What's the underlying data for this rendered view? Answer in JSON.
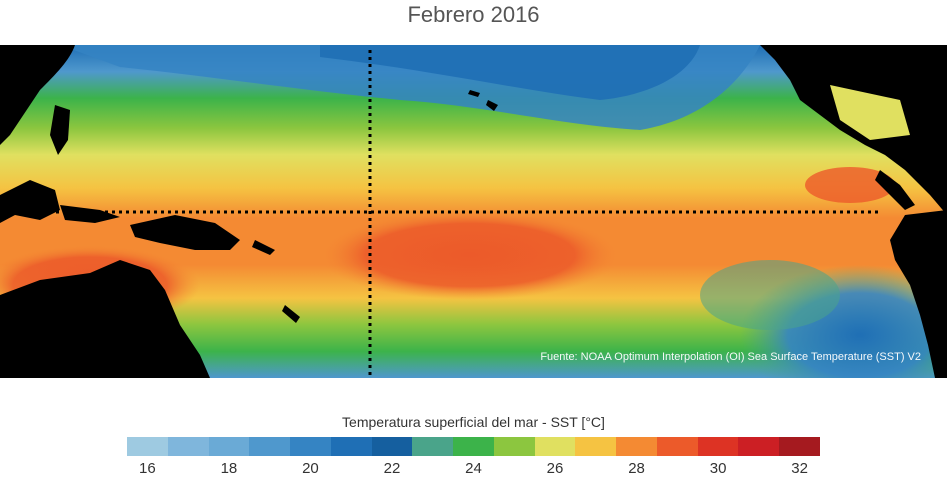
{
  "title": "Febrero 2016",
  "source": "Fuente: NOAA Optimum Interpolation (OI) Sea Surface Temperature (SST) V2",
  "legend": {
    "title": "Temperatura superficial del mar - SST  [°C]",
    "ticks": [
      "16",
      "18",
      "20",
      "22",
      "24",
      "26",
      "28",
      "30",
      "32"
    ],
    "colors": [
      "#9ecae1",
      "#7fb6dc",
      "#6aaad6",
      "#4f98cd",
      "#3584c3",
      "#1f6fb5",
      "#155f9f",
      "#4aa48a",
      "#3cb34a",
      "#8cc63f",
      "#e0e060",
      "#f5c342",
      "#f48a33",
      "#ec5a2a",
      "#dd3324",
      "#cc1f24",
      "#a51a1f"
    ]
  },
  "map": {
    "land_color": "#000000",
    "gridlines": "dotted equator and 180° meridian"
  }
}
